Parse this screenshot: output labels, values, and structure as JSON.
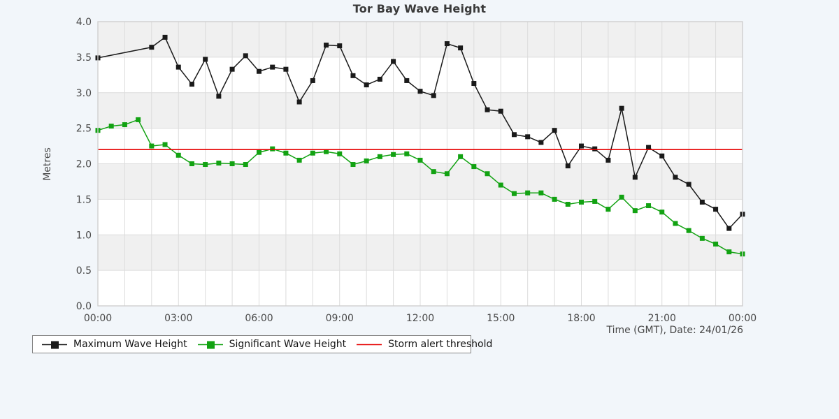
{
  "chart_data": {
    "type": "line",
    "title": "Tor Bay Wave Height",
    "ylabel": "Metres",
    "xlabel": "Time (GMT), Date: 24/01/26",
    "ylim": [
      0.0,
      4.0
    ],
    "y_ticks": [
      "4.0",
      "3.5",
      "3.0",
      "2.5",
      "2.0",
      "1.5",
      "1.0",
      "0.5",
      "0.0"
    ],
    "x_ticks": [
      {
        "hour": 0,
        "label": "00:00"
      },
      {
        "hour": 3,
        "label": "03:00"
      },
      {
        "hour": 6,
        "label": "06:00"
      },
      {
        "hour": 9,
        "label": "09:00"
      },
      {
        "hour": 12,
        "label": "12:00"
      },
      {
        "hour": 15,
        "label": "15:00"
      },
      {
        "hour": 18,
        "label": "18:00"
      },
      {
        "hour": 21,
        "label": "21:00"
      },
      {
        "hour": 24,
        "label": "00:00"
      }
    ],
    "grid": "hourly-vertical, 0.5m-horizontal, alternating-grey-bands",
    "legend_position": "bottom-left",
    "times": [
      "00:00",
      "00:30",
      "01:00",
      "01:30",
      "02:00",
      "02:30",
      "03:00",
      "03:30",
      "04:00",
      "04:30",
      "05:00",
      "05:30",
      "06:00",
      "06:30",
      "07:00",
      "07:30",
      "08:00",
      "08:30",
      "09:00",
      "09:30",
      "10:00",
      "10:30",
      "11:00",
      "11:30",
      "12:00",
      "12:30",
      "13:00",
      "13:30",
      "14:00",
      "14:30",
      "15:00",
      "15:30",
      "16:00",
      "16:30",
      "17:00",
      "17:30",
      "18:00",
      "18:30",
      "19:00",
      "19:30",
      "20:00",
      "20:30",
      "21:00",
      "21:30",
      "22:00",
      "22:30",
      "23:00",
      "23:30",
      "00:00"
    ],
    "series": [
      {
        "name": "Maximum Wave Height",
        "color": "#1a1a1a",
        "values": [
          3.49,
          null,
          null,
          null,
          3.64,
          3.78,
          3.36,
          3.12,
          3.47,
          2.95,
          3.33,
          3.52,
          3.3,
          3.36,
          3.33,
          2.87,
          3.17,
          3.67,
          3.66,
          3.24,
          3.11,
          3.19,
          3.44,
          3.17,
          3.02,
          2.96,
          3.69,
          3.63,
          3.13,
          2.76,
          2.74,
          2.41,
          2.38,
          2.3,
          2.47,
          1.97,
          2.25,
          2.21,
          2.05,
          2.78,
          1.81,
          2.23,
          2.11,
          1.81,
          1.71,
          1.46,
          1.36,
          1.09,
          1.29
        ]
      },
      {
        "name": "Significant Wave Height",
        "color": "#12a212",
        "values": [
          2.47,
          2.53,
          2.55,
          2.62,
          2.25,
          2.27,
          2.12,
          2.0,
          1.99,
          2.01,
          2.0,
          1.99,
          2.16,
          2.21,
          2.15,
          2.05,
          2.15,
          2.17,
          2.14,
          1.99,
          2.04,
          2.1,
          2.13,
          2.14,
          2.05,
          1.89,
          1.86,
          2.1,
          1.96,
          1.86,
          1.7,
          1.58,
          1.59,
          1.59,
          1.5,
          1.43,
          1.46,
          1.47,
          1.36,
          1.53,
          1.34,
          1.41,
          1.32,
          1.16,
          1.06,
          0.95,
          0.87,
          0.76,
          0.73
        ]
      }
    ],
    "threshold": {
      "name": "Storm alert threshold",
      "value": 2.2,
      "color": "#e60000"
    },
    "colors": {
      "max": "#1a1a1a",
      "significant": "#12a212",
      "threshold": "#e60000",
      "band_gray": "#f0f0f0",
      "band_white": "#ffffff",
      "grid": "#dcdcdc",
      "border": "#cfcfcf",
      "tick_text": "#4a4a4a",
      "title_text": "#3a3a3a",
      "page_background": "#f2f6fa"
    }
  }
}
